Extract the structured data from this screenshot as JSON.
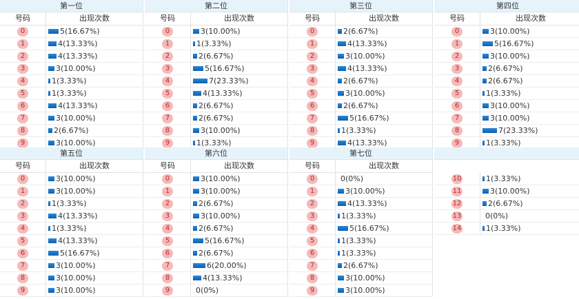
{
  "headers": {
    "number": "号码",
    "count": "出现次数"
  },
  "colors": {
    "bar": "#1a73c9",
    "ball": "#f5b9b9",
    "title_bg": "#e6f3fb"
  },
  "panels": [
    {
      "title": "第一位",
      "rows": [
        {
          "num": "0",
          "text": "5(16.67%)",
          "value": 5
        },
        {
          "num": "1",
          "text": "4(13.33%)",
          "value": 4
        },
        {
          "num": "2",
          "text": "4(13.33%)",
          "value": 4
        },
        {
          "num": "3",
          "text": "3(10.00%)",
          "value": 3
        },
        {
          "num": "4",
          "text": "1(3.33%)",
          "value": 1
        },
        {
          "num": "5",
          "text": "1(3.33%)",
          "value": 1
        },
        {
          "num": "6",
          "text": "4(13.33%)",
          "value": 4
        },
        {
          "num": "7",
          "text": "3(10.00%)",
          "value": 3
        },
        {
          "num": "8",
          "text": "2(6.67%)",
          "value": 2
        },
        {
          "num": "9",
          "text": "3(10.00%)",
          "value": 3
        }
      ]
    },
    {
      "title": "第二位",
      "rows": [
        {
          "num": "0",
          "text": "3(10.00%)",
          "value": 3
        },
        {
          "num": "1",
          "text": "1(3.33%)",
          "value": 1
        },
        {
          "num": "2",
          "text": "2(6.67%)",
          "value": 2
        },
        {
          "num": "3",
          "text": "5(16.67%)",
          "value": 5
        },
        {
          "num": "4",
          "text": "7(23.33%)",
          "value": 7
        },
        {
          "num": "5",
          "text": "4(13.33%)",
          "value": 4
        },
        {
          "num": "6",
          "text": "2(6.67%)",
          "value": 2
        },
        {
          "num": "7",
          "text": "2(6.67%)",
          "value": 2
        },
        {
          "num": "8",
          "text": "3(10.00%)",
          "value": 3
        },
        {
          "num": "9",
          "text": "1(3.33%)",
          "value": 1
        }
      ]
    },
    {
      "title": "第三位",
      "rows": [
        {
          "num": "0",
          "text": "2(6.67%)",
          "value": 2
        },
        {
          "num": "1",
          "text": "4(13.33%)",
          "value": 4
        },
        {
          "num": "2",
          "text": "3(10.00%)",
          "value": 3
        },
        {
          "num": "3",
          "text": "4(13.33%)",
          "value": 4
        },
        {
          "num": "4",
          "text": "2(6.67%)",
          "value": 2
        },
        {
          "num": "5",
          "text": "3(10.00%)",
          "value": 3
        },
        {
          "num": "6",
          "text": "2(6.67%)",
          "value": 2
        },
        {
          "num": "7",
          "text": "5(16.67%)",
          "value": 5
        },
        {
          "num": "8",
          "text": "1(3.33%)",
          "value": 1
        },
        {
          "num": "9",
          "text": "4(13.33%)",
          "value": 4
        }
      ]
    },
    {
      "title": "第四位",
      "rows": [
        {
          "num": "0",
          "text": "3(10.00%)",
          "value": 3
        },
        {
          "num": "1",
          "text": "5(16.67%)",
          "value": 5
        },
        {
          "num": "2",
          "text": "3(10.00%)",
          "value": 3
        },
        {
          "num": "3",
          "text": "2(6.67%)",
          "value": 2
        },
        {
          "num": "4",
          "text": "2(6.67%)",
          "value": 2
        },
        {
          "num": "5",
          "text": "1(3.33%)",
          "value": 1
        },
        {
          "num": "6",
          "text": "3(10.00%)",
          "value": 3
        },
        {
          "num": "7",
          "text": "3(10.00%)",
          "value": 3
        },
        {
          "num": "8",
          "text": "7(23.33%)",
          "value": 7
        },
        {
          "num": "9",
          "text": "1(3.33%)",
          "value": 1
        }
      ]
    },
    {
      "title": "第五位",
      "rows": [
        {
          "num": "0",
          "text": "3(10.00%)",
          "value": 3
        },
        {
          "num": "1",
          "text": "3(10.00%)",
          "value": 3
        },
        {
          "num": "2",
          "text": "1(3.33%)",
          "value": 1
        },
        {
          "num": "3",
          "text": "4(13.33%)",
          "value": 4
        },
        {
          "num": "4",
          "text": "1(3.33%)",
          "value": 1
        },
        {
          "num": "5",
          "text": "4(13.33%)",
          "value": 4
        },
        {
          "num": "6",
          "text": "5(16.67%)",
          "value": 5
        },
        {
          "num": "7",
          "text": "3(10.00%)",
          "value": 3
        },
        {
          "num": "8",
          "text": "3(10.00%)",
          "value": 3
        },
        {
          "num": "9",
          "text": "3(10.00%)",
          "value": 3
        }
      ]
    },
    {
      "title": "第六位",
      "rows": [
        {
          "num": "0",
          "text": "3(10.00%)",
          "value": 3
        },
        {
          "num": "1",
          "text": "3(10.00%)",
          "value": 3
        },
        {
          "num": "2",
          "text": "2(6.67%)",
          "value": 2
        },
        {
          "num": "3",
          "text": "3(10.00%)",
          "value": 3
        },
        {
          "num": "4",
          "text": "2(6.67%)",
          "value": 2
        },
        {
          "num": "5",
          "text": "5(16.67%)",
          "value": 5
        },
        {
          "num": "6",
          "text": "2(6.67%)",
          "value": 2
        },
        {
          "num": "7",
          "text": "6(20.00%)",
          "value": 6
        },
        {
          "num": "8",
          "text": "4(13.33%)",
          "value": 4
        },
        {
          "num": "9",
          "text": "0(0%)",
          "value": 0
        }
      ]
    },
    {
      "title": "第七位",
      "rows": [
        {
          "num": "0",
          "text": "0(0%)",
          "value": 0
        },
        {
          "num": "1",
          "text": "3(10.00%)",
          "value": 3
        },
        {
          "num": "2",
          "text": "4(13.33%)",
          "value": 4
        },
        {
          "num": "3",
          "text": "1(3.33%)",
          "value": 1
        },
        {
          "num": "4",
          "text": "5(16.67%)",
          "value": 5
        },
        {
          "num": "5",
          "text": "1(3.33%)",
          "value": 1
        },
        {
          "num": "6",
          "text": "1(3.33%)",
          "value": 1
        },
        {
          "num": "7",
          "text": "2(6.67%)",
          "value": 2
        },
        {
          "num": "8",
          "text": "3(10.00%)",
          "value": 3
        },
        {
          "num": "9",
          "text": "3(10.00%)",
          "value": 3
        }
      ]
    },
    {
      "title": "",
      "no_header": true,
      "rows": [
        {
          "num": "10",
          "text": "1(3.33%)",
          "value": 1
        },
        {
          "num": "11",
          "text": "3(10.00%)",
          "value": 3
        },
        {
          "num": "12",
          "text": "2(6.67%)",
          "value": 2
        },
        {
          "num": "13",
          "text": "0(0%)",
          "value": 0
        },
        {
          "num": "14",
          "text": "1(3.33%)",
          "value": 1
        }
      ]
    }
  ]
}
